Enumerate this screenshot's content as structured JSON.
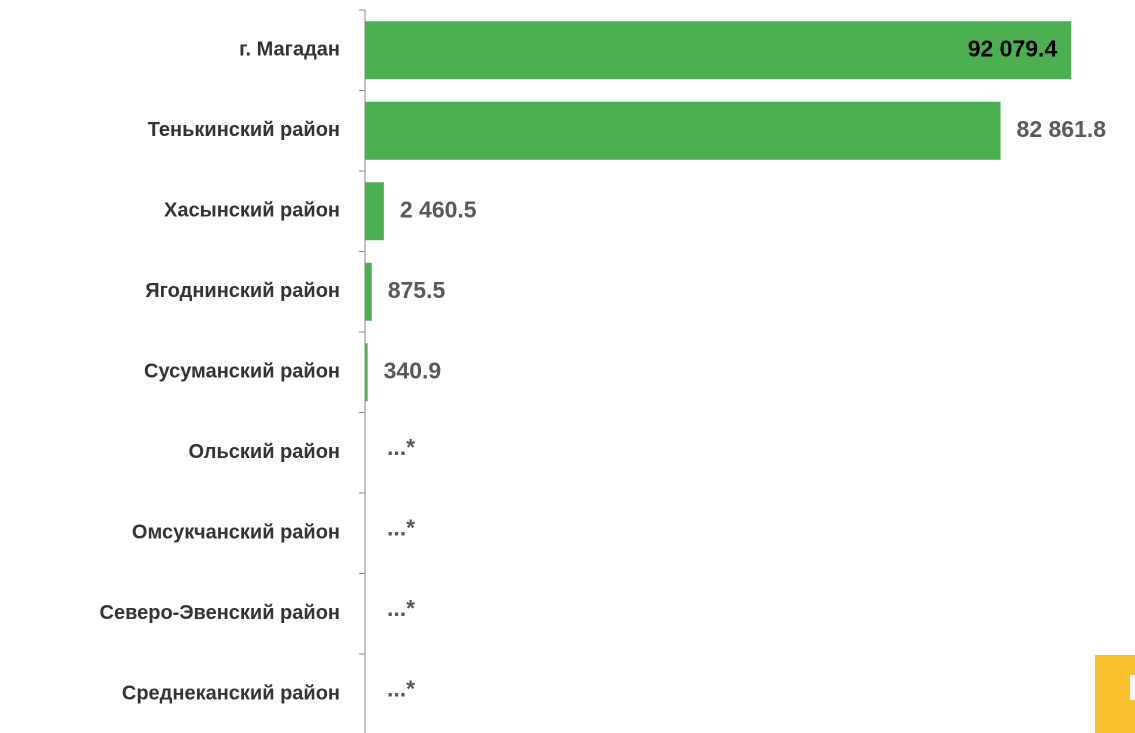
{
  "chart_data": {
    "type": "hbar",
    "categories": [
      "г. Магадан",
      "Тенькинский район",
      "Хасынский район",
      "Ягоднинский район",
      "Сусуманский район",
      "Ольский район",
      "Омсукчанский район",
      "Северо-Эвенский район",
      "Среднеканский район"
    ],
    "values": [
      92079.4,
      82861.8,
      2460.5,
      875.5,
      340.9,
      null,
      null,
      null,
      null
    ],
    "value_labels": [
      "92 079.4",
      "82 861.8",
      "2 460.5",
      "875.5",
      "340.9",
      "...*",
      "...*",
      "...*",
      "...*"
    ],
    "color": "#4caf50",
    "xlim": [
      0,
      100000
    ]
  }
}
